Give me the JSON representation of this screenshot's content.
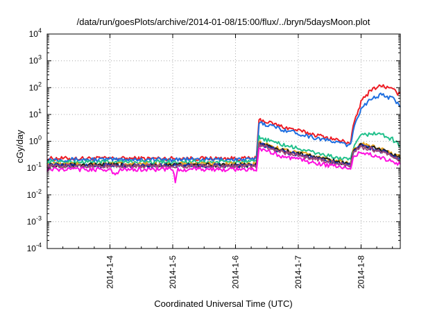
{
  "chart_data": {
    "type": "line",
    "title": "/data/run/goesPlots/archive/2014-01-08/15:00/flux/../bryn/5daysMoon.plot",
    "xlabel": "Coordinated Universal Time (UTC)",
    "ylabel": "cGy/day",
    "y_scale": "log",
    "ylim": [
      0.0001,
      10000
    ],
    "y_ticks": [
      {
        "base": "10",
        "exp": "-4"
      },
      {
        "base": "10",
        "exp": "-3"
      },
      {
        "base": "10",
        "exp": "-2"
      },
      {
        "base": "10",
        "exp": "-1"
      },
      {
        "base": "10",
        "exp": "0"
      },
      {
        "base": "10",
        "exp": "1"
      },
      {
        "base": "10",
        "exp": "2"
      },
      {
        "base": "10",
        "exp": "3"
      },
      {
        "base": "10",
        "exp": "4"
      }
    ],
    "xlim": [
      "2014-01-03 00:00",
      "2014-01-08 15:00"
    ],
    "x_ticks": [
      "2014-1-4",
      "2014-1-5",
      "2014-1-6",
      "2014-1-7",
      "2014-1-8"
    ],
    "grid": true,
    "legend": "none",
    "series": [
      {
        "color": "#ee1c24",
        "points": [
          [
            "2014-01-03 00:00",
            0.23
          ],
          [
            "2014-01-06 08:00",
            0.23
          ],
          [
            "2014-01-06 09:00",
            6.5
          ],
          [
            "2014-01-06 18:00",
            3.5
          ],
          [
            "2014-01-07 06:00",
            1.8
          ],
          [
            "2014-01-07 18:00",
            0.95
          ],
          [
            "2014-01-07 20:00",
            0.9
          ],
          [
            "2014-01-07 21:00",
            3.5
          ],
          [
            "2014-01-08 00:00",
            30
          ],
          [
            "2014-01-08 04:00",
            90
          ],
          [
            "2014-01-08 08:00",
            120
          ],
          [
            "2014-01-08 12:00",
            85
          ],
          [
            "2014-01-08 15:00",
            55
          ]
        ]
      },
      {
        "color": "#1e6fe0",
        "points": [
          [
            "2014-01-03 00:00",
            0.21
          ],
          [
            "2014-01-06 08:00",
            0.21
          ],
          [
            "2014-01-06 09:00",
            5.2
          ],
          [
            "2014-01-06 18:00",
            2.8
          ],
          [
            "2014-01-07 06:00",
            1.4
          ],
          [
            "2014-01-07 18:00",
            0.78
          ],
          [
            "2014-01-07 20:00",
            0.7
          ],
          [
            "2014-01-07 21:00",
            2.5
          ],
          [
            "2014-01-08 00:00",
            18
          ],
          [
            "2014-01-08 04:00",
            40
          ],
          [
            "2014-01-08 08:00",
            55
          ],
          [
            "2014-01-08 12:00",
            40
          ],
          [
            "2014-01-08 15:00",
            20
          ]
        ]
      },
      {
        "color": "#22c18c",
        "points": [
          [
            "2014-01-03 00:00",
            0.17
          ],
          [
            "2014-01-06 08:00",
            0.17
          ],
          [
            "2014-01-06 09:00",
            1.4
          ],
          [
            "2014-01-06 18:00",
            0.75
          ],
          [
            "2014-01-07 06:00",
            0.38
          ],
          [
            "2014-01-07 18:00",
            0.21
          ],
          [
            "2014-01-07 20:00",
            0.2
          ],
          [
            "2014-01-07 21:00",
            0.55
          ],
          [
            "2014-01-08 00:00",
            1.6
          ],
          [
            "2014-01-08 04:00",
            2.0
          ],
          [
            "2014-01-08 08:00",
            1.8
          ],
          [
            "2014-01-08 12:00",
            1.2
          ],
          [
            "2014-01-08 15:00",
            0.65
          ]
        ]
      },
      {
        "color": "#e8a21c",
        "points": [
          [
            "2014-01-03 00:00",
            0.14
          ],
          [
            "2014-01-06 08:00",
            0.14
          ],
          [
            "2014-01-06 09:00",
            0.9
          ],
          [
            "2014-01-06 18:00",
            0.5
          ],
          [
            "2014-01-07 06:00",
            0.28
          ],
          [
            "2014-01-07 18:00",
            0.16
          ],
          [
            "2014-01-07 20:00",
            0.15
          ],
          [
            "2014-01-07 21:00",
            0.45
          ],
          [
            "2014-01-08 00:00",
            0.8
          ],
          [
            "2014-01-08 04:00",
            0.65
          ],
          [
            "2014-01-08 08:00",
            0.5
          ],
          [
            "2014-01-08 12:00",
            0.36
          ],
          [
            "2014-01-08 15:00",
            0.26
          ]
        ]
      },
      {
        "color": "#1a1a1a",
        "points": [
          [
            "2014-01-03 00:00",
            0.13
          ],
          [
            "2014-01-06 08:00",
            0.13
          ],
          [
            "2014-01-06 09:00",
            0.85
          ],
          [
            "2014-01-06 18:00",
            0.46
          ],
          [
            "2014-01-07 06:00",
            0.26
          ],
          [
            "2014-01-07 18:00",
            0.15
          ],
          [
            "2014-01-07 20:00",
            0.14
          ],
          [
            "2014-01-07 21:00",
            0.42
          ],
          [
            "2014-01-08 00:00",
            0.75
          ],
          [
            "2014-01-08 04:00",
            0.6
          ],
          [
            "2014-01-08 08:00",
            0.46
          ],
          [
            "2014-01-08 12:00",
            0.33
          ],
          [
            "2014-01-08 15:00",
            0.24
          ]
        ]
      },
      {
        "color": "#2233aa",
        "points": [
          [
            "2014-01-03 00:00",
            0.125
          ],
          [
            "2014-01-06 08:00",
            0.125
          ],
          [
            "2014-01-06 09:00",
            0.8
          ],
          [
            "2014-01-06 18:00",
            0.43
          ],
          [
            "2014-01-07 06:00",
            0.24
          ],
          [
            "2014-01-07 18:00",
            0.14
          ],
          [
            "2014-01-07 20:00",
            0.13
          ],
          [
            "2014-01-07 21:00",
            0.4
          ],
          [
            "2014-01-08 00:00",
            0.7
          ],
          [
            "2014-01-08 04:00",
            0.55
          ],
          [
            "2014-01-08 08:00",
            0.42
          ],
          [
            "2014-01-08 12:00",
            0.3
          ],
          [
            "2014-01-08 15:00",
            0.22
          ]
        ]
      },
      {
        "color": "#a04a7a",
        "points": [
          [
            "2014-01-03 00:00",
            0.12
          ],
          [
            "2014-01-06 08:00",
            0.12
          ],
          [
            "2014-01-06 09:00",
            0.75
          ],
          [
            "2014-01-06 18:00",
            0.4
          ],
          [
            "2014-01-07 06:00",
            0.22
          ],
          [
            "2014-01-07 18:00",
            0.13
          ],
          [
            "2014-01-07 20:00",
            0.12
          ],
          [
            "2014-01-07 21:00",
            0.36
          ],
          [
            "2014-01-08 00:00",
            0.62
          ],
          [
            "2014-01-08 04:00",
            0.5
          ],
          [
            "2014-01-08 08:00",
            0.38
          ],
          [
            "2014-01-08 12:00",
            0.27
          ],
          [
            "2014-01-08 15:00",
            0.2
          ]
        ]
      },
      {
        "color": "#ff10e0",
        "points": [
          [
            "2014-01-03 00:00",
            0.09
          ],
          [
            "2014-01-04 00:00",
            0.09
          ],
          [
            "2014-01-04 02:00",
            0.05
          ],
          [
            "2014-01-04 04:00",
            0.09
          ],
          [
            "2014-01-05 00:00",
            0.09
          ],
          [
            "2014-01-05 01:00",
            0.032
          ],
          [
            "2014-01-05 02:00",
            0.09
          ],
          [
            "2014-01-06 08:00",
            0.09
          ],
          [
            "2014-01-06 09:00",
            0.5
          ],
          [
            "2014-01-06 18:00",
            0.28
          ],
          [
            "2014-01-07 06:00",
            0.16
          ],
          [
            "2014-01-07 18:00",
            0.1
          ],
          [
            "2014-01-07 20:00",
            0.09
          ],
          [
            "2014-01-07 21:00",
            0.25
          ],
          [
            "2014-01-08 00:00",
            0.4
          ],
          [
            "2014-01-08 04:00",
            0.32
          ],
          [
            "2014-01-08 08:00",
            0.24
          ],
          [
            "2014-01-08 12:00",
            0.18
          ],
          [
            "2014-01-08 15:00",
            0.14
          ]
        ]
      }
    ]
  }
}
